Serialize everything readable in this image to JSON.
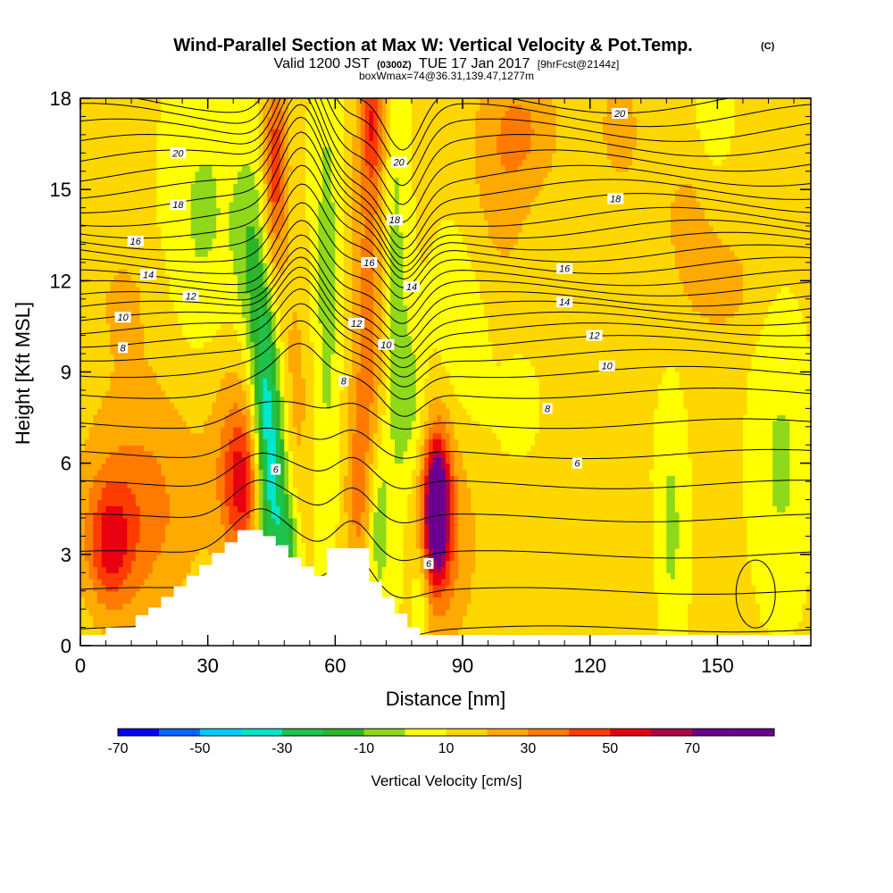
{
  "chart_data": {
    "type": "heatmap",
    "title": "Wind-Parallel Section at Max W: Vertical Velocity & Pot.Temp.",
    "title_mark": "(C)",
    "subtitle": {
      "prefix": "Valid 1200 JST",
      "utc": "(0300Z)",
      "date": "TUE 17 Jan 2017",
      "forecast": "[9hrFcst@2144z]"
    },
    "subtitle2": "boxWmax=74@36.31,139.47,1277m",
    "xlabel": "Distance [nm]",
    "ylabel": "Height [Kft MSL]",
    "xlim": [
      0,
      172
    ],
    "ylim": [
      0,
      18
    ],
    "x_ticks": [
      0,
      30,
      60,
      90,
      120,
      150
    ],
    "y_ticks": [
      0,
      3,
      6,
      9,
      12,
      15,
      18
    ],
    "colorbar": {
      "title": "Vertical Velocity [cm/s]",
      "labels": [
        "-70",
        "-50",
        "-30",
        "-10",
        "10",
        "30",
        "50",
        "70"
      ],
      "levels": [
        -80,
        -70,
        -60,
        -50,
        -40,
        -30,
        -20,
        -10,
        0,
        10,
        20,
        30,
        40,
        50,
        60,
        70,
        80
      ],
      "colors": [
        "#0000ff",
        "#0066ff",
        "#00ccff",
        "#00e6c8",
        "#1fc24a",
        "#2db52a",
        "#8fd81a",
        "#ffff00",
        "#ffd700",
        "#ffaa00",
        "#ff7a00",
        "#ff3c00",
        "#e80010",
        "#b0004a",
        "#6a0090",
        "#6a0090"
      ]
    },
    "background_vv": 2,
    "vv_features": [
      {
        "x": 7,
        "y": 3.3,
        "sx": 3.5,
        "sy": 1.4,
        "w": 28
      },
      {
        "x": 12,
        "y": 3.8,
        "sx": 9,
        "sy": 2.2,
        "w": 18
      },
      {
        "x": 16,
        "y": 6.5,
        "sx": 11,
        "sy": 3,
        "w": 10
      },
      {
        "x": 38,
        "y": 5.3,
        "sx": 3,
        "sy": 1.5,
        "w": 32
      },
      {
        "x": 37,
        "y": 6.5,
        "sx": 5,
        "sy": 3,
        "w": 15
      },
      {
        "x": 10,
        "y": 11.5,
        "sx": 5,
        "sy": 1.5,
        "w": 8
      },
      {
        "x": 29,
        "y": 14,
        "sx": 6,
        "sy": 3.5,
        "w": -14
      },
      {
        "x": 44,
        "y": 6,
        "sx": 2.2,
        "sy": 2.5,
        "w": -38
      },
      {
        "x": 43,
        "y": 10,
        "sx": 2.4,
        "sy": 2.5,
        "w": -28
      },
      {
        "x": 40,
        "y": 13,
        "sx": 3,
        "sy": 2.5,
        "w": -18
      },
      {
        "x": 47,
        "y": 5,
        "sx": 2.2,
        "sy": 2.5,
        "w": -28
      },
      {
        "x": 49,
        "y": 3.2,
        "sx": 1.8,
        "sy": 1,
        "w": -25
      },
      {
        "x": 50,
        "y": 8,
        "sx": 3,
        "sy": 3,
        "w": 14
      },
      {
        "x": 46,
        "y": 16,
        "sx": 2,
        "sy": 1.8,
        "w": 35
      },
      {
        "x": 45,
        "y": 13,
        "sx": 2,
        "sy": 1.5,
        "w": 15
      },
      {
        "x": 58,
        "y": 12,
        "sx": 2.5,
        "sy": 6,
        "w": -16
      },
      {
        "x": 65,
        "y": 5,
        "sx": 2.2,
        "sy": 2.5,
        "w": 15
      },
      {
        "x": 68,
        "y": 11,
        "sx": 2.8,
        "sy": 6,
        "w": 22
      },
      {
        "x": 69,
        "y": 17.3,
        "sx": 2,
        "sy": 1.5,
        "w": 28
      },
      {
        "x": 70,
        "y": 4,
        "sx": 1.8,
        "sy": 2,
        "w": -25
      },
      {
        "x": 74,
        "y": 12,
        "sx": 2.2,
        "sy": 6,
        "w": -16
      },
      {
        "x": 78,
        "y": 8,
        "sx": 2.5,
        "sy": 2,
        "w": -15
      },
      {
        "x": 84,
        "y": 4.5,
        "sx": 1.8,
        "sy": 1.4,
        "w": 75
      },
      {
        "x": 84,
        "y": 4.3,
        "sx": 3.5,
        "sy": 2.6,
        "w": 30
      },
      {
        "x": 90,
        "y": 4,
        "sx": 4,
        "sy": 3,
        "w": 10
      },
      {
        "x": 80,
        "y": 1.5,
        "sx": 1.5,
        "sy": 1.2,
        "w": -15
      },
      {
        "x": 90,
        "y": 10,
        "sx": 5,
        "sy": 3,
        "w": -12
      },
      {
        "x": 103,
        "y": 8,
        "sx": 3,
        "sy": 1,
        "w": -10
      },
      {
        "x": 98,
        "y": 15,
        "sx": 6,
        "sy": 3,
        "w": 12
      },
      {
        "x": 105,
        "y": 17,
        "sx": 6,
        "sy": 1.5,
        "w": 15
      },
      {
        "x": 127,
        "y": 17,
        "sx": 4,
        "sy": 1.5,
        "w": 12
      },
      {
        "x": 128,
        "y": 2.5,
        "sx": 5,
        "sy": 1.5,
        "w": 8
      },
      {
        "x": 143,
        "y": 14,
        "sx": 6,
        "sy": 2,
        "w": 10
      },
      {
        "x": 151,
        "y": 11.8,
        "sx": 5,
        "sy": 1,
        "w": 14
      },
      {
        "x": 139,
        "y": 3.8,
        "sx": 2.5,
        "sy": 2.8,
        "w": -15
      },
      {
        "x": 165,
        "y": 6,
        "sx": 4.5,
        "sy": 3,
        "w": -14
      },
      {
        "x": 149,
        "y": 17.5,
        "sx": 3,
        "sy": 1.5,
        "w": -10
      },
      {
        "x": 118,
        "y": 2.5,
        "sx": 2,
        "sy": 1,
        "w": 6
      }
    ],
    "terrain": [
      [
        0,
        0.35
      ],
      [
        6,
        0.35
      ],
      [
        6,
        0.6
      ],
      [
        13,
        0.6
      ],
      [
        13,
        1.0
      ],
      [
        16,
        1.0
      ],
      [
        16,
        1.25
      ],
      [
        19,
        1.25
      ],
      [
        19,
        1.6
      ],
      [
        22,
        1.6
      ],
      [
        22,
        1.95
      ],
      [
        25,
        1.95
      ],
      [
        25,
        2.3
      ],
      [
        28,
        2.3
      ],
      [
        28,
        2.65
      ],
      [
        31,
        2.65
      ],
      [
        31,
        3.05
      ],
      [
        34,
        3.05
      ],
      [
        34,
        3.4
      ],
      [
        37,
        3.4
      ],
      [
        37,
        3.8
      ],
      [
        43,
        3.8
      ],
      [
        43,
        3.6
      ],
      [
        46,
        3.6
      ],
      [
        46,
        3.3
      ],
      [
        49,
        3.3
      ],
      [
        49,
        2.9
      ],
      [
        52,
        2.9
      ],
      [
        52,
        2.6
      ],
      [
        55,
        2.6
      ],
      [
        55,
        2.3
      ],
      [
        58,
        2.3
      ],
      [
        58,
        3.2
      ],
      [
        68,
        3.2
      ],
      [
        68,
        2.1
      ],
      [
        71,
        2.1
      ],
      [
        71,
        1.6
      ],
      [
        74,
        1.6
      ],
      [
        74,
        1.05
      ],
      [
        77,
        1.05
      ],
      [
        77,
        0.6
      ],
      [
        80,
        0.6
      ],
      [
        80,
        0.35
      ],
      [
        172,
        0.35
      ]
    ],
    "theta_contours": {
      "base_heights": [
        0.55,
        1.8,
        3.0,
        4.2,
        5.3,
        6.3,
        7.3,
        8.3,
        9.0,
        9.55,
        10.0,
        10.4,
        10.75,
        11.1,
        11.4,
        11.75,
        12.1,
        12.5,
        12.9,
        13.3,
        13.7,
        14.1,
        14.55,
        15.0,
        15.45,
        15.95,
        16.45,
        16.95,
        17.45,
        17.9
      ],
      "labels": [
        {
          "text": "6",
          "x": 46,
          "y": 5.8
        },
        {
          "text": "6",
          "x": 82,
          "y": 2.7
        },
        {
          "text": "6",
          "x": 117,
          "y": 6.0
        },
        {
          "text": "8",
          "x": 10,
          "y": 9.8
        },
        {
          "text": "8",
          "x": 62,
          "y": 8.7
        },
        {
          "text": "8",
          "x": 110,
          "y": 7.8
        },
        {
          "text": "10",
          "x": 10,
          "y": 10.8
        },
        {
          "text": "10",
          "x": 72,
          "y": 9.9
        },
        {
          "text": "10",
          "x": 124,
          "y": 9.2
        },
        {
          "text": "12",
          "x": 26,
          "y": 11.5
        },
        {
          "text": "12",
          "x": 65,
          "y": 10.6
        },
        {
          "text": "12",
          "x": 121,
          "y": 10.2
        },
        {
          "text": "14",
          "x": 16,
          "y": 12.2
        },
        {
          "text": "14",
          "x": 78,
          "y": 11.8
        },
        {
          "text": "14",
          "x": 114,
          "y": 11.3
        },
        {
          "text": "16",
          "x": 13,
          "y": 13.3
        },
        {
          "text": "16",
          "x": 68,
          "y": 12.6
        },
        {
          "text": "16",
          "x": 114,
          "y": 12.4
        },
        {
          "text": "18",
          "x": 23,
          "y": 14.5
        },
        {
          "text": "18",
          "x": 74,
          "y": 14.0
        },
        {
          "text": "18",
          "x": 126,
          "y": 14.7
        },
        {
          "text": "20",
          "x": 23,
          "y": 16.2
        },
        {
          "text": "20",
          "x": 75,
          "y": 15.9
        },
        {
          "text": "20",
          "x": 127,
          "y": 17.5
        }
      ]
    }
  }
}
